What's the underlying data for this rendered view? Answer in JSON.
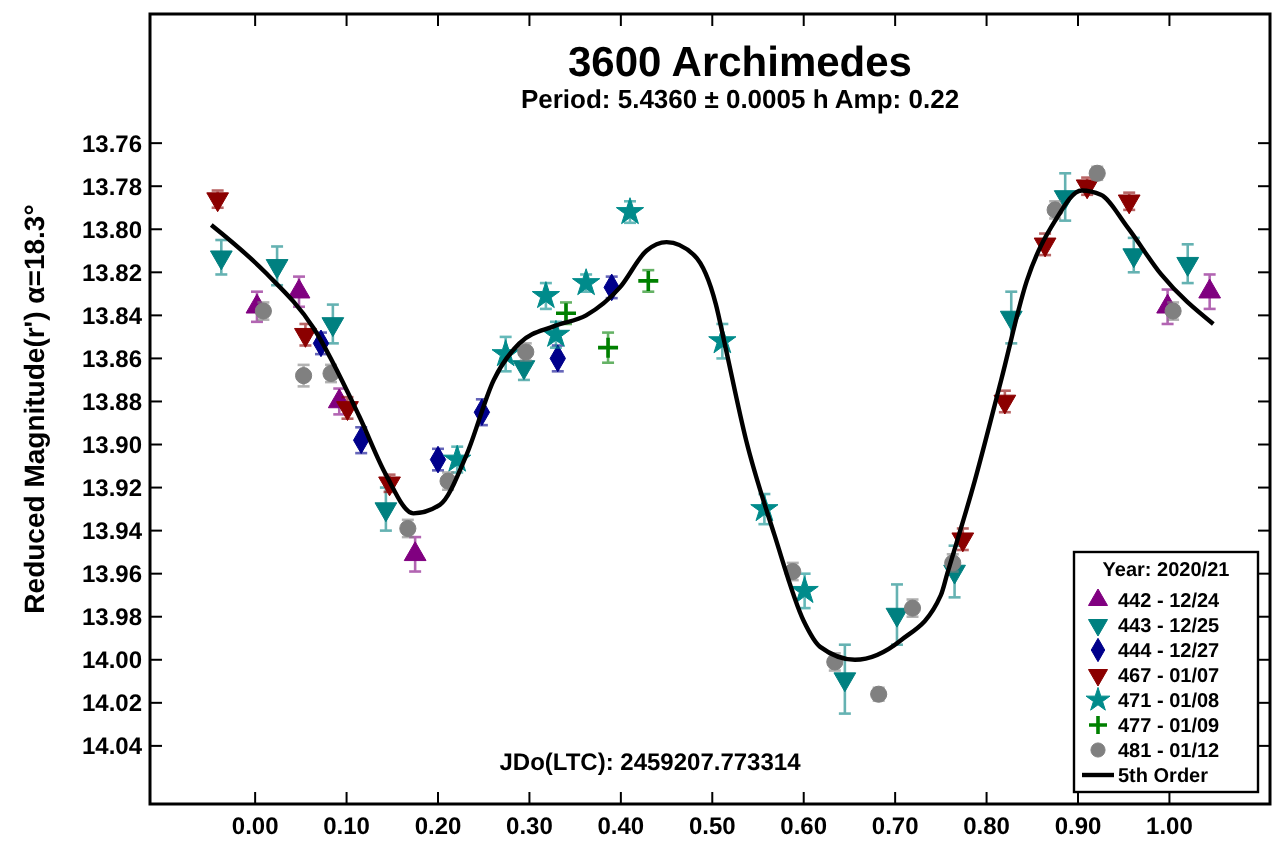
{
  "chart_data": {
    "type": "scatter",
    "title": "3600 Archimedes",
    "subtitle": "Period: 5.4360 ± 0.0005 h  Amp: 0.22",
    "ylabel": "Reduced Magnitude(r')  α=18.3°",
    "legend_title": "Year: 2020/21",
    "legend": "bottom right",
    "grid": false,
    "annotations": [
      "JDo(LTC): 2459207.773314"
    ],
    "xlim": [
      -0.115,
      1.11
    ],
    "ylim": [
      14.067,
      13.7
    ],
    "xticks": [
      {
        "value": 0,
        "label": "0.00"
      },
      {
        "value": 0.1,
        "label": "0.10"
      },
      {
        "value": 0.2,
        "label": "0.20"
      },
      {
        "value": 0.3,
        "label": "0.30"
      },
      {
        "value": 0.4,
        "label": "0.40"
      },
      {
        "value": 0.5,
        "label": "0.50"
      },
      {
        "value": 0.6,
        "label": "0.60"
      },
      {
        "value": 0.7,
        "label": "0.70"
      },
      {
        "value": 0.8,
        "label": "0.80"
      },
      {
        "value": 0.9,
        "label": "0.90"
      },
      {
        "value": 1,
        "label": "1.00"
      }
    ],
    "yticks": [
      {
        "value": 13.76,
        "label": "13.76"
      },
      {
        "value": 13.78,
        "label": "13.78"
      },
      {
        "value": 13.8,
        "label": "13.80"
      },
      {
        "value": 13.82,
        "label": "13.82"
      },
      {
        "value": 13.84,
        "label": "13.84"
      },
      {
        "value": 13.86,
        "label": "13.86"
      },
      {
        "value": 13.88,
        "label": "13.88"
      },
      {
        "value": 13.9,
        "label": "13.90"
      },
      {
        "value": 13.92,
        "label": "13.92"
      },
      {
        "value": 13.94,
        "label": "13.94"
      },
      {
        "value": 13.96,
        "label": "13.96"
      },
      {
        "value": 13.98,
        "label": "13.98"
      },
      {
        "value": 14,
        "label": "14.00"
      },
      {
        "value": 14.02,
        "label": "14.02"
      },
      {
        "value": 14.04,
        "label": "14.04"
      }
    ],
    "series": [
      {
        "name": "442 - 12/24",
        "color": "#800080",
        "marker": "triangle",
        "x": [
          0.002,
          0.048,
          0.092,
          0.175,
          0.998,
          1.044
        ],
        "values": [
          13.836,
          13.829,
          13.88,
          13.951,
          13.836,
          13.829
        ],
        "errors": [
          0.007,
          0.007,
          0.006,
          0.008,
          0.008,
          0.008
        ]
      },
      {
        "name": "443 - 12/25",
        "color": "#008080",
        "marker": "triangle-down",
        "x": [
          -0.037,
          0.024,
          0.085,
          0.143,
          0.294,
          0.645,
          0.702,
          0.765,
          0.827,
          0.886,
          0.961,
          1.02
        ],
        "values": [
          13.813,
          13.817,
          13.844,
          13.93,
          13.864,
          14.009,
          13.979,
          13.959,
          13.841,
          13.785,
          13.812,
          13.816
        ],
        "errors": [
          0.008,
          0.009,
          0.009,
          0.01,
          0.006,
          0.016,
          0.014,
          0.012,
          0.012,
          0.011,
          0.008,
          0.009
        ]
      },
      {
        "name": "444 - 12/27",
        "color": "#00008b",
        "marker": "diamond",
        "x": [
          0.072,
          0.116,
          0.2,
          0.248,
          0.331,
          0.39
        ],
        "values": [
          13.853,
          13.898,
          13.907,
          13.885,
          13.86,
          13.827
        ],
        "errors": [
          0.005,
          0.006,
          0.005,
          0.006,
          0.006,
          0.005
        ]
      },
      {
        "name": "467 - 01/07",
        "color": "#8b0000",
        "marker": "triangle-down",
        "x": [
          -0.041,
          0.055,
          0.101,
          0.147,
          0.774,
          0.82,
          0.864,
          0.91,
          0.956
        ],
        "values": [
          13.786,
          13.849,
          13.883,
          13.918,
          13.944,
          13.88,
          13.807,
          13.78,
          13.787
        ],
        "errors": [
          0.004,
          0.005,
          0.005,
          0.004,
          0.005,
          0.005,
          0.005,
          0.004,
          0.004
        ]
      },
      {
        "name": "471 - 01/08",
        "color": "#008b8b",
        "marker": "star",
        "x": [
          0.221,
          0.274,
          0.318,
          0.329,
          0.362,
          0.41,
          0.511,
          0.557,
          0.601
        ],
        "values": [
          13.907,
          13.858,
          13.831,
          13.849,
          13.825,
          13.792,
          13.852,
          13.93,
          13.968
        ],
        "errors": [
          0.006,
          0.008,
          0.006,
          0.006,
          0.004,
          0.005,
          0.008,
          0.007,
          0.008
        ]
      },
      {
        "name": "477 - 01/09",
        "color": "#008000",
        "marker": "cross",
        "x": [
          0.34,
          0.386,
          0.43
        ],
        "values": [
          13.839,
          13.855,
          13.824
        ],
        "errors": [
          0.005,
          0.007,
          0.005
        ]
      },
      {
        "name": "481 - 01/12",
        "color": "#808080",
        "marker": "circle",
        "x": [
          0.009,
          0.053,
          0.083,
          0.167,
          0.211,
          0.296,
          0.588,
          0.634,
          0.682,
          0.719,
          0.763,
          0.875,
          0.921,
          1.004
        ],
        "values": [
          13.838,
          13.868,
          13.867,
          13.939,
          13.917,
          13.857,
          13.959,
          14.001,
          14.016,
          13.976,
          13.955,
          13.791,
          13.774,
          13.838
        ],
        "errors": [
          0.004,
          0.005,
          0.004,
          0.004,
          0.004,
          0.004,
          0.004,
          0.004,
          0.003,
          0.004,
          0.004,
          0.004,
          0.003,
          0.004
        ]
      },
      {
        "name": "5th Order",
        "type": "line",
        "color": "#000000",
        "marker": "none",
        "x": [
          -0.048,
          0.011,
          0.064,
          0.114,
          0.143,
          0.173,
          0.202,
          0.231,
          0.261,
          0.289,
          0.327,
          0.362,
          0.399,
          0.428,
          0.45,
          0.48,
          0.504,
          0.513,
          0.537,
          0.568,
          0.6,
          0.618,
          0.656,
          0.706,
          0.75,
          0.757,
          0.787,
          0.816,
          0.844,
          0.875,
          0.904,
          0.925,
          0.954,
          0.991,
          1.048
        ],
        "values": [
          13.798,
          13.82,
          13.846,
          13.887,
          13.914,
          13.932,
          13.928,
          13.905,
          13.87,
          13.853,
          13.845,
          13.84,
          13.827,
          13.81,
          13.806,
          13.812,
          13.835,
          13.852,
          13.898,
          13.942,
          13.982,
          13.994,
          14.0,
          13.991,
          13.97,
          13.96,
          13.917,
          13.87,
          13.824,
          13.796,
          13.782,
          13.784,
          13.799,
          13.821,
          13.844
        ]
      }
    ]
  }
}
